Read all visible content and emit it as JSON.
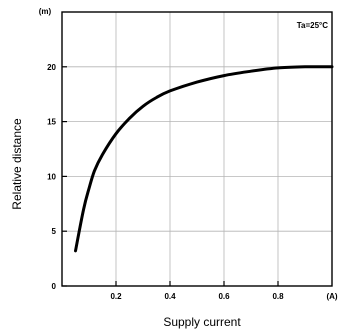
{
  "chart_data": {
    "type": "line",
    "xlabel": "Supply current",
    "ylabel": "Relative distance",
    "x_unit": "(A)",
    "y_unit": "(m)",
    "annotation": "Ta=25°C",
    "xlim": [
      0,
      1.0
    ],
    "ylim": [
      0,
      25
    ],
    "x_ticks": [
      {
        "value": 0.2,
        "label": "0.2"
      },
      {
        "value": 0.4,
        "label": "0.4"
      },
      {
        "value": 0.6,
        "label": "0.6"
      },
      {
        "value": 0.8,
        "label": "0.8"
      }
    ],
    "y_ticks": [
      {
        "value": 0,
        "label": "0"
      },
      {
        "value": 5,
        "label": "5"
      },
      {
        "value": 10,
        "label": "10"
      },
      {
        "value": 15,
        "label": "15"
      },
      {
        "value": 20,
        "label": "20"
      }
    ],
    "grid": true,
    "series": [
      {
        "x": [
          0.05,
          0.08,
          0.1,
          0.12,
          0.15,
          0.2,
          0.25,
          0.3,
          0.35,
          0.4,
          0.5,
          0.6,
          0.7,
          0.8,
          0.9,
          0.95,
          1.0
        ],
        "y": [
          3.2,
          7.0,
          8.9,
          10.5,
          12.0,
          13.9,
          15.3,
          16.4,
          17.2,
          17.8,
          18.6,
          19.2,
          19.6,
          19.9,
          20.0,
          20.0,
          20.0
        ]
      }
    ]
  }
}
